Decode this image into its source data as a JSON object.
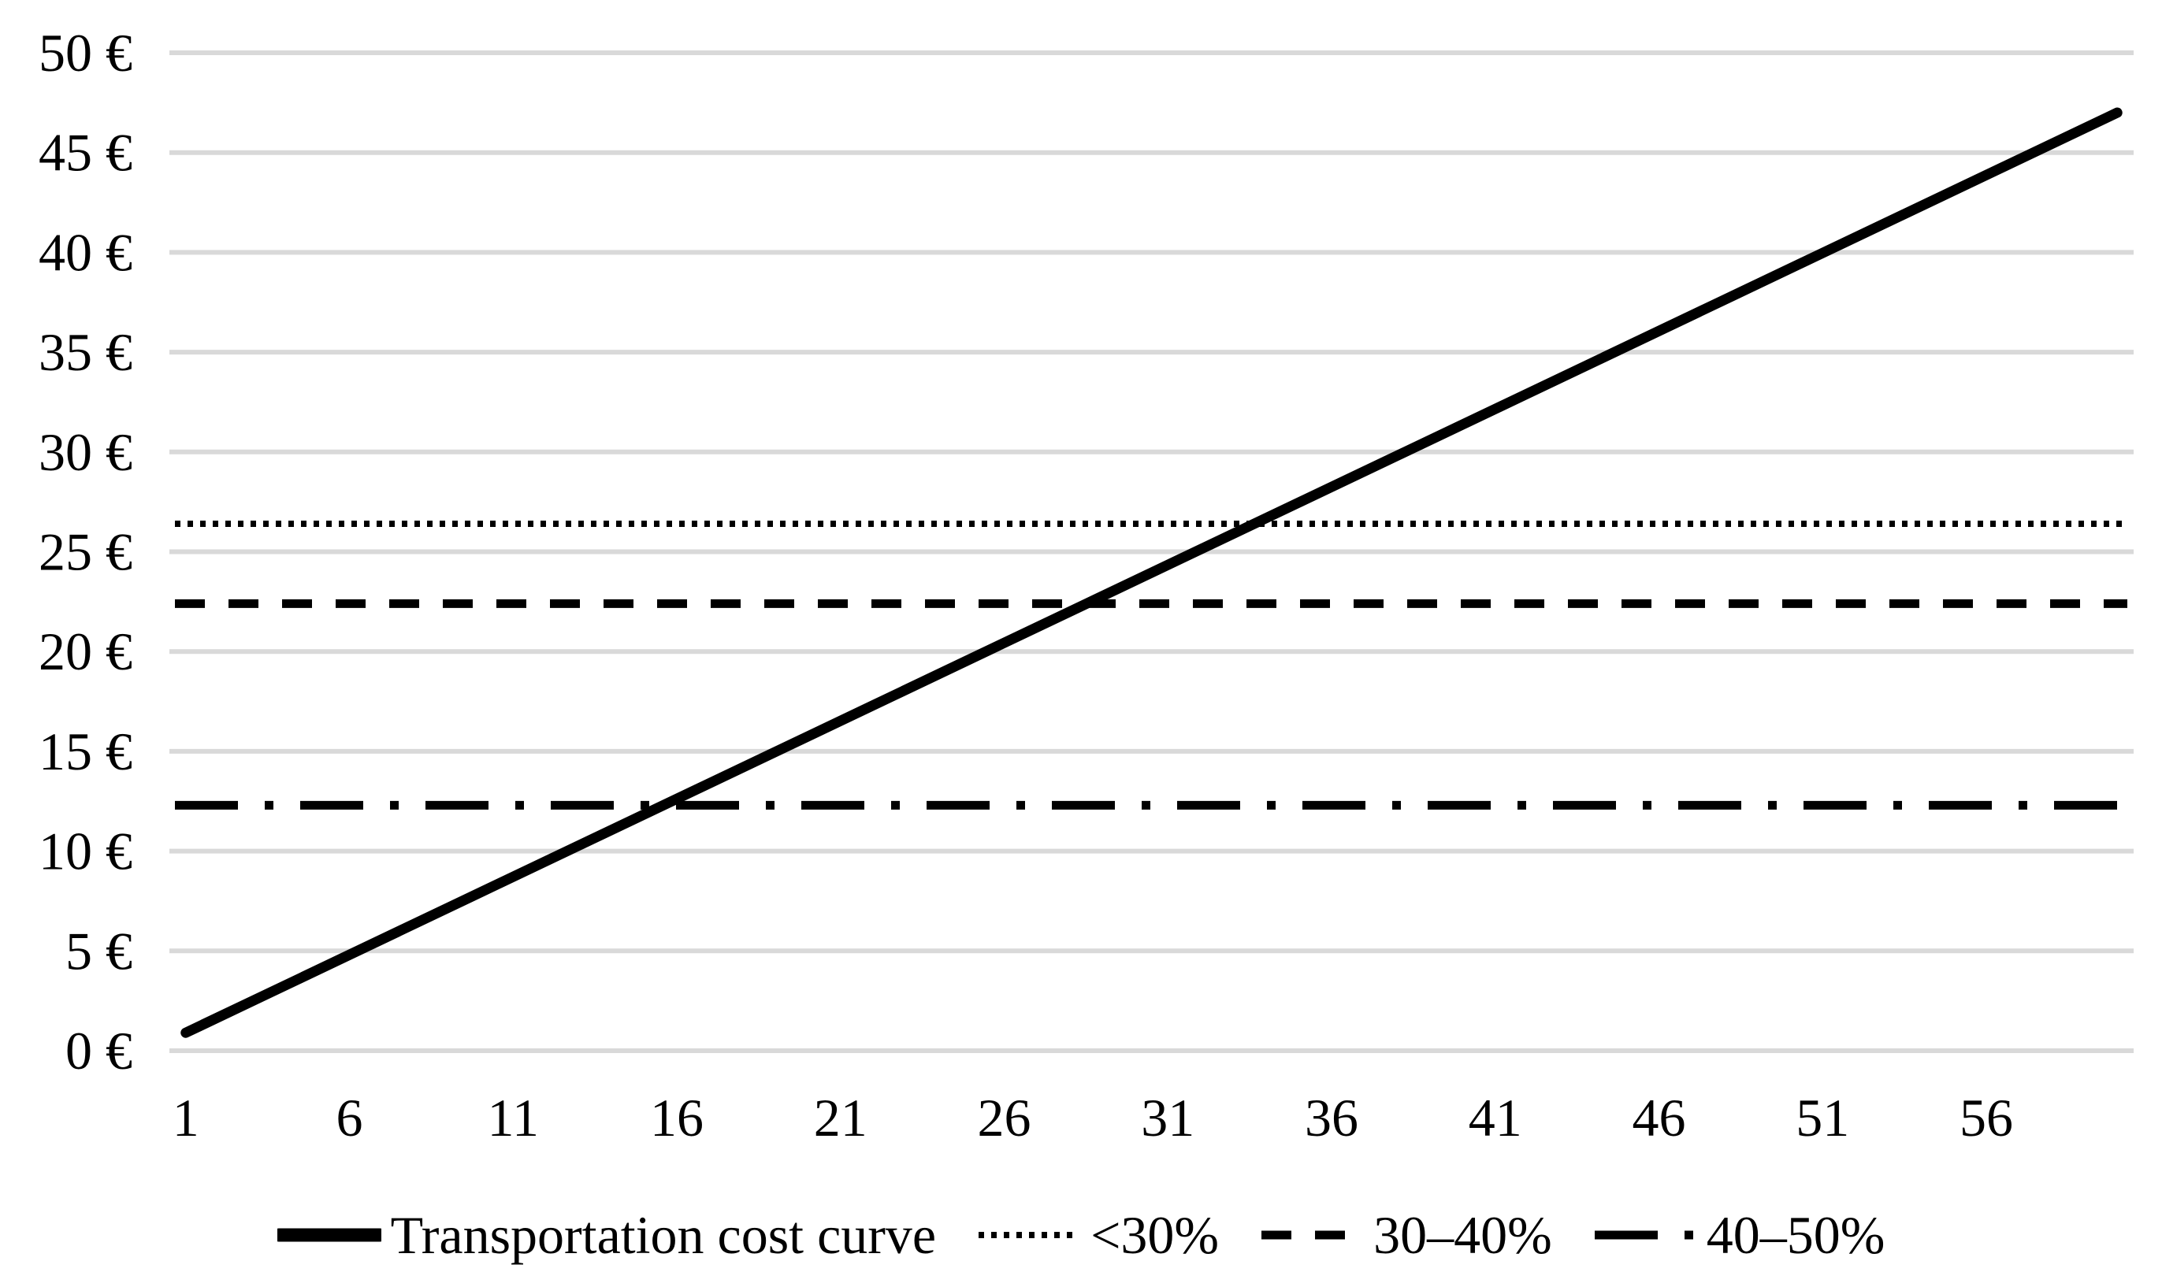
{
  "chart_data": {
    "type": "line",
    "title": "",
    "xlabel": "",
    "ylabel": "",
    "x_axis": {
      "ticks": [
        1,
        6,
        11,
        16,
        21,
        26,
        31,
        36,
        41,
        46,
        51,
        56
      ],
      "range": [
        1,
        60
      ]
    },
    "y_axis": {
      "ticks": [
        0,
        5,
        10,
        15,
        20,
        25,
        30,
        35,
        40,
        45,
        50
      ],
      "suffix": " €",
      "range": [
        0,
        50
      ]
    },
    "grid": true,
    "legend_position": "bottom",
    "colors": {
      "series": "#000000",
      "gridline": "#d9d9d9",
      "background": "#ffffff",
      "text": "#000000"
    },
    "series": [
      {
        "name": "Transportation cost curve",
        "kind": "line",
        "style": "solid",
        "points": [
          [
            1,
            0.9
          ],
          [
            60,
            47.0
          ]
        ]
      },
      {
        "name": "<30%",
        "kind": "threshold",
        "style": "dotted",
        "value": 26.4
      },
      {
        "name": "30–40%",
        "kind": "threshold",
        "style": "dashed",
        "value": 22.4
      },
      {
        "name": "40–50%",
        "kind": "threshold",
        "style": "dash-dot",
        "value": 12.3
      }
    ]
  }
}
